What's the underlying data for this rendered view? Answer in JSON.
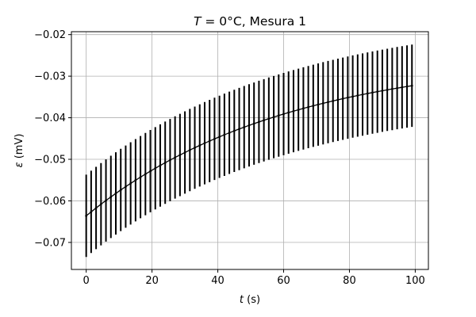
{
  "chart_data": {
    "type": "scatter",
    "title": "T = 0°C, Mesura 1",
    "title_parts": {
      "var": "T",
      "rest": " = 0°C, Mesura 1"
    },
    "xlabel": "t (s)",
    "xlabel_parts": {
      "var": "t",
      "rest": " (s)"
    },
    "ylabel": "ε (mV)",
    "ylabel_parts": {
      "var": "ε",
      "rest": " (mV)"
    },
    "xlim": [
      -4.5,
      104
    ],
    "ylim": [
      -0.0765,
      -0.0193
    ],
    "x_ticks": [
      0,
      20,
      40,
      60,
      80,
      100
    ],
    "x_tick_labels": [
      "0",
      "20",
      "40",
      "60",
      "80",
      "100"
    ],
    "y_ticks": [
      -0.07,
      -0.06,
      -0.05,
      -0.04,
      -0.03,
      -0.02
    ],
    "y_tick_labels": [
      "−0.07",
      "−0.06",
      "−0.05",
      "−0.04",
      "−0.03",
      "−0.02"
    ],
    "grid": true,
    "series": [
      {
        "x_start": 0,
        "x_step": 1.5,
        "count": 67,
        "y_start": -0.0636,
        "y_end": -0.0323,
        "decay_tau": 60,
        "error": 0.0099,
        "color": "#000000",
        "marker": "dot",
        "errorbars": true
      }
    ]
  }
}
